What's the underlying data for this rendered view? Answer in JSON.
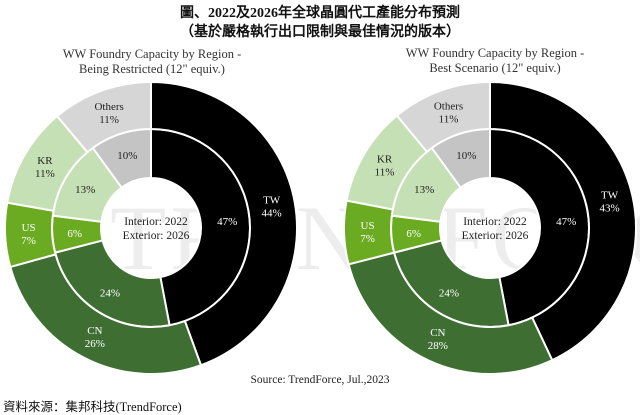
{
  "title": "圖、2022及2026年全球晶圓代工產能分布預測",
  "subtitle": "（基於嚴格執行出口限制與最佳情況的版本）",
  "watermark": "TRENDFORCE",
  "source": "Source: TrendForce, Jul.,2023",
  "footer": "資料來源：集邦科技(TrendForce)",
  "colors": {
    "TW": "#000000",
    "CN": "#3f6e33",
    "US": "#6aab22",
    "KR": "#c6e0b6",
    "Others": "#d6d6d6",
    "OthersInner": "#c4c4c4"
  },
  "chart_data": [
    {
      "type": "pie",
      "title_line1": "WW Foundry Capacity by Region -",
      "title_line2": "Being Restricted (12\" equiv.)",
      "center_label_1": "Interior: 2022",
      "center_label_2": "Exterior: 2026",
      "categories": [
        "TW",
        "CN",
        "US",
        "KR",
        "Others"
      ],
      "series": [
        {
          "name": "2022 (interior)",
          "values": [
            47,
            24,
            6,
            13,
            10
          ],
          "labels": [
            "47%",
            "24%",
            "6%",
            "13%",
            "10%"
          ]
        },
        {
          "name": "2026 (exterior)",
          "values": [
            44,
            26,
            7,
            11,
            11
          ],
          "labels": [
            "44%",
            "26%",
            "7%",
            "11%",
            "11%"
          ]
        }
      ]
    },
    {
      "type": "pie",
      "title_line1": "WW Foundry Capacity by Region -",
      "title_line2": "Best Scenario (12\" equiv.)",
      "center_label_1": "Interior: 2022",
      "center_label_2": "Exterior: 2026",
      "categories": [
        "TW",
        "CN",
        "US",
        "KR",
        "Others"
      ],
      "series": [
        {
          "name": "2022 (interior)",
          "values": [
            47,
            24,
            6,
            13,
            10
          ],
          "labels": [
            "47%",
            "24%",
            "6%",
            "13%",
            "10%"
          ]
        },
        {
          "name": "2026 (exterior)",
          "values": [
            43,
            28,
            7,
            11,
            11
          ],
          "labels": [
            "43%",
            "28%",
            "7%",
            "11%",
            "11%"
          ]
        }
      ]
    }
  ]
}
